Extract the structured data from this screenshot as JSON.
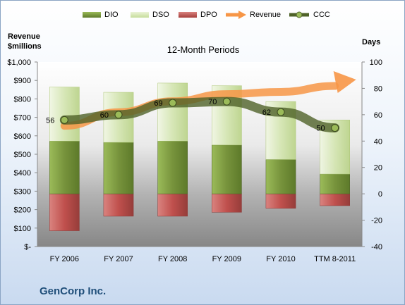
{
  "chart_data": {
    "type": "bar",
    "title": "12-Month Periods",
    "footer": "GenCorp Inc.",
    "y_left_label": [
      "Revenue",
      "$millions"
    ],
    "y_right_label": "Days",
    "categories": [
      "FY 2006",
      "FY 2007",
      "FY 2008",
      "FY 2009",
      "FY 2010",
      "TTM 8-2011"
    ],
    "left_axis": {
      "min": 0,
      "max": 1000,
      "step": 100,
      "tick_labels": [
        "$-",
        "$100",
        "$200",
        "$300",
        "$400",
        "$500",
        "$600",
        "$700",
        "$800",
        "$900",
        "$1,000"
      ]
    },
    "right_axis": {
      "min": -40,
      "max": 100,
      "step": 20,
      "tick_labels": [
        "-40",
        "-20",
        "0",
        "20",
        "40",
        "60",
        "80",
        "100"
      ]
    },
    "series": [
      {
        "name": "DIO",
        "type": "stacked-bar",
        "axis": "right",
        "values": [
          40,
          39,
          40,
          37,
          26,
          15
        ]
      },
      {
        "name": "DSO",
        "type": "stacked-bar",
        "axis": "right",
        "values": [
          41,
          38,
          44,
          45,
          44,
          41
        ]
      },
      {
        "name": "DPO",
        "type": "negative-bar",
        "axis": "right",
        "values": [
          -28,
          -17,
          -17,
          -14,
          -11,
          -9
        ]
      },
      {
        "name": "Revenue",
        "type": "arrow",
        "axis": "left",
        "values": [
          654,
          728,
          787,
          826,
          838,
          870
        ]
      },
      {
        "name": "CCC",
        "type": "line",
        "axis": "right",
        "values": [
          56,
          60,
          69,
          70,
          62,
          50
        ],
        "data_labels": [
          "56",
          "60",
          "69",
          "70",
          "62",
          "50"
        ]
      }
    ],
    "legend_position": "top",
    "grid": false,
    "colors": {
      "DIO": "#77933c",
      "DSO": "#c6dd9a",
      "DPO": "#c0504d",
      "Revenue": "#f79646",
      "CCC": "#4f6228"
    }
  }
}
